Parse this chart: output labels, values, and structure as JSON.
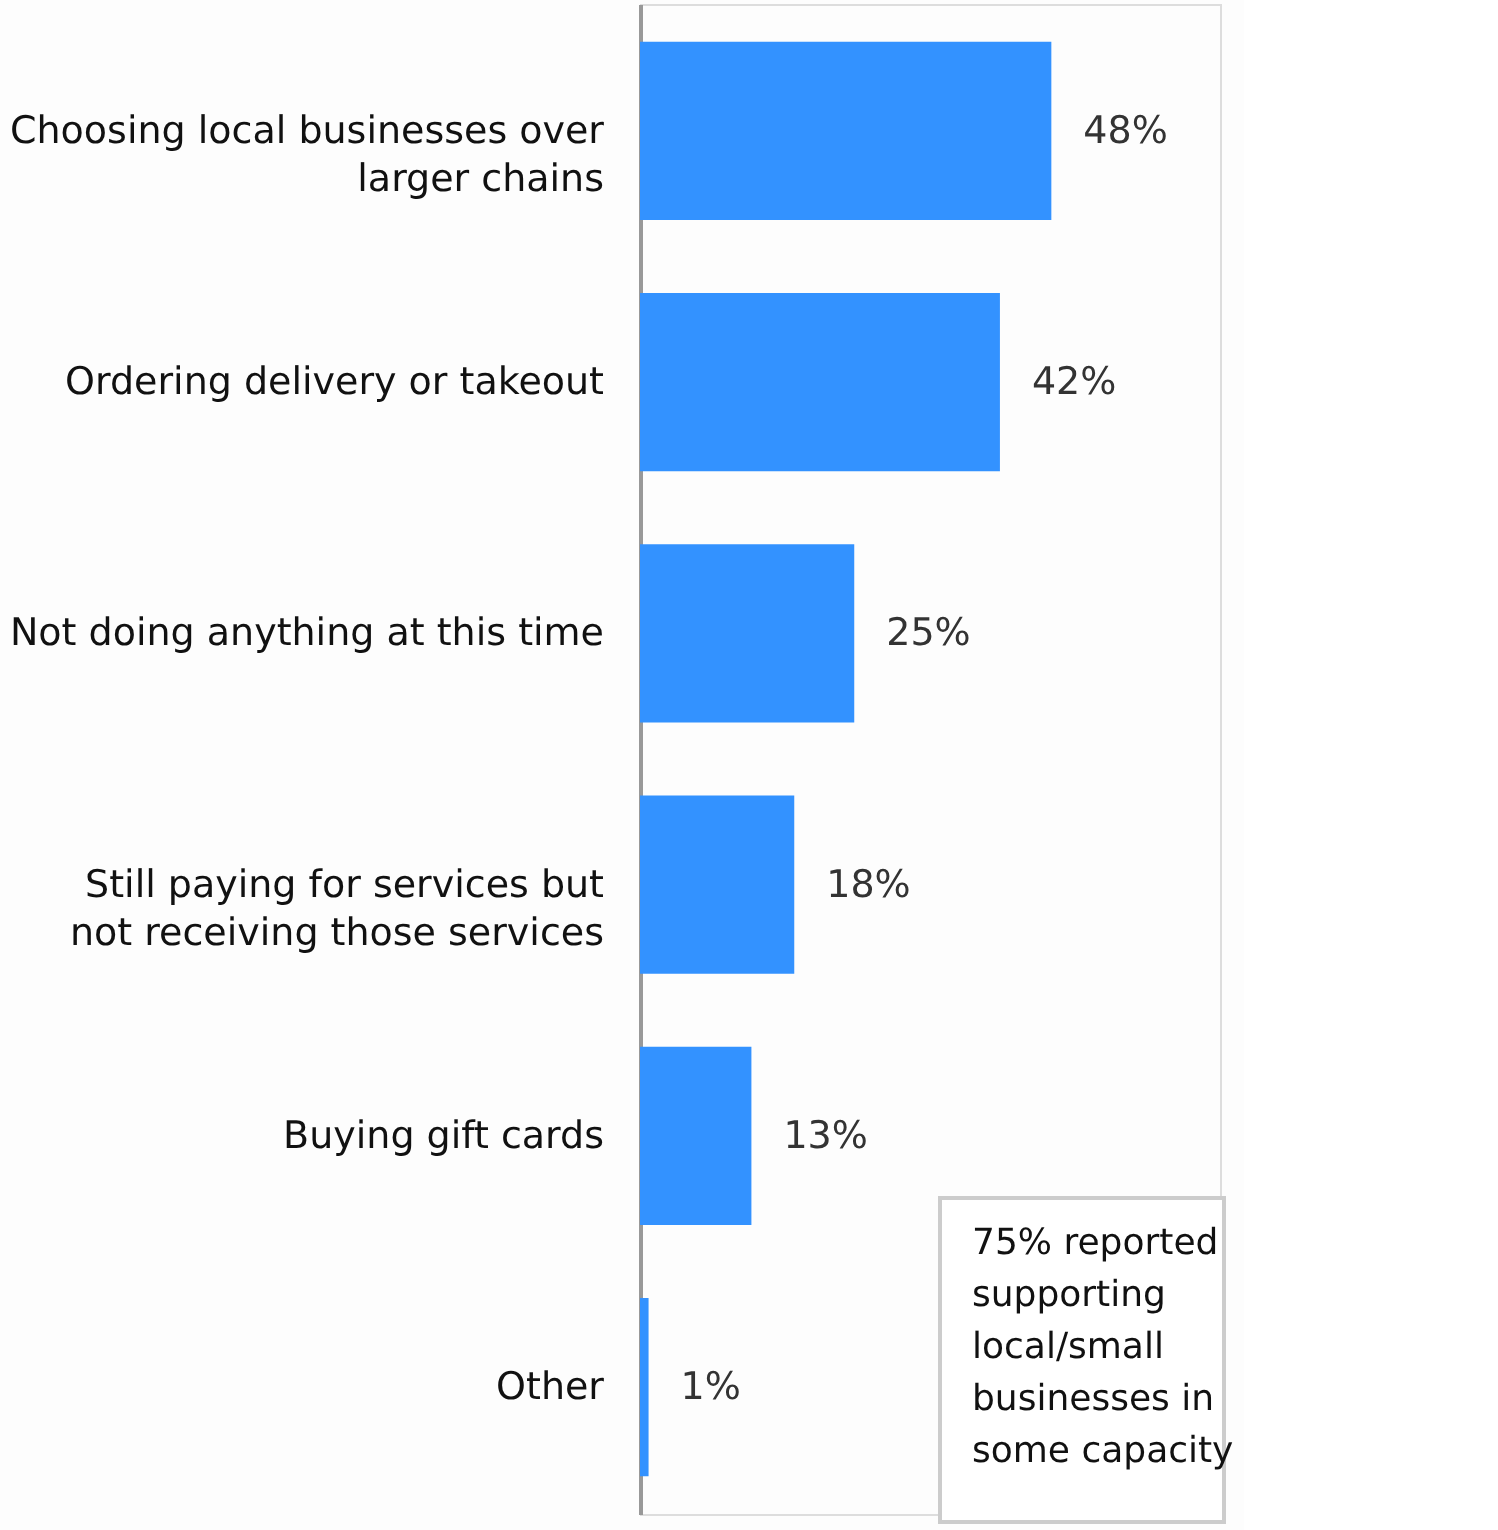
{
  "chart_data": {
    "type": "bar",
    "orientation": "horizontal",
    "categories": [
      "Choosing local businesses over larger chains",
      "Ordering delivery or takeout",
      "Not doing anything at this time",
      "Still paying for services but not receiving those services",
      "Buying gift cards",
      "Other"
    ],
    "values": [
      48,
      42,
      25,
      18,
      13,
      1
    ],
    "value_labels": [
      "48%",
      "42%",
      "25%",
      "18%",
      "13%",
      "1%"
    ],
    "color": "#3392ff",
    "grid": false,
    "annotations": [
      "75% reported supporting local/small businesses in some capacity"
    ]
  }
}
